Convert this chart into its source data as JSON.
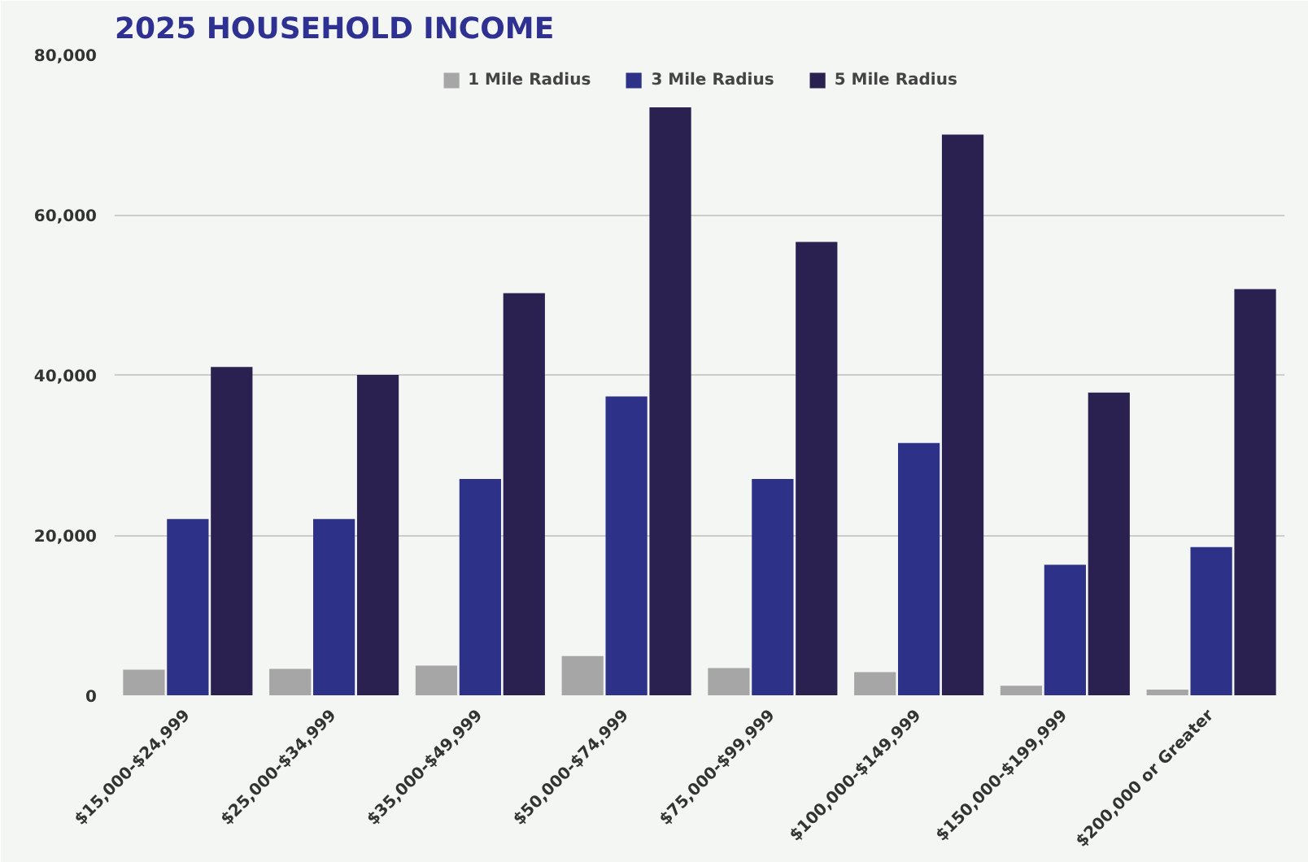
{
  "chart_data": {
    "type": "bar",
    "title": "2025 HOUSEHOLD INCOME",
    "categories": [
      "$15,000-$24,999",
      "$25,000-$34,999",
      "$35,000-$49,999",
      "$50,000-$74,999",
      "$75,000-$99,999",
      "$100,000-$149,999",
      "$150,000-$199,999",
      "$200,000 or Greater"
    ],
    "series": [
      {
        "name": "1 Mile Radius",
        "color": "#a6a6a6",
        "values": [
          3200,
          3300,
          3700,
          4900,
          3400,
          2900,
          1200,
          700
        ]
      },
      {
        "name": "3 Mile Radius",
        "color": "#2e3188",
        "values": [
          22000,
          22000,
          27000,
          37300,
          27000,
          31500,
          16300,
          18500
        ]
      },
      {
        "name": "5 Mile Radius",
        "color": "#2a2150",
        "values": [
          41000,
          40000,
          50200,
          73400,
          56600,
          70000,
          37800,
          50700
        ]
      }
    ],
    "ylim": [
      0,
      80000
    ],
    "yticks": [
      {
        "value": 0,
        "label": "0"
      },
      {
        "value": 20000,
        "label": "20,000"
      },
      {
        "value": 40000,
        "label": "40,000"
      },
      {
        "value": 60000,
        "label": "60,000"
      },
      {
        "value": 80000,
        "label": "80,000"
      }
    ],
    "grid": "y",
    "legend": "top"
  }
}
